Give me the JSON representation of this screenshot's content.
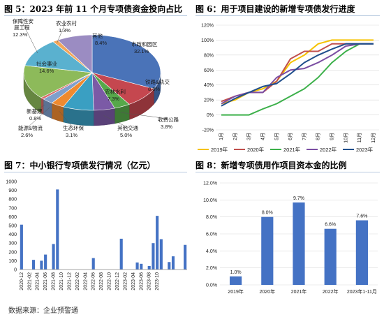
{
  "titles": {
    "fig5": "图 5：2023 年前 11 个月专项债资金投向占比",
    "fig6": "图 6：用于项目建设的新增专项债发行进度",
    "fig7": "图 7：中小银行专项债发行情况（亿元）",
    "fig8": "图 8：新增专项债用作项目资本金的比例"
  },
  "source": "数据来源：企业预警通",
  "chart_data": [
    {
      "id": "fig5",
      "type": "pie",
      "slices": [
        {
          "label": "市政和园区",
          "value": 32.1,
          "color": "#4a73b8"
        },
        {
          "label": "铁路&轨交",
          "value": 8.8,
          "color": "#c5474f"
        },
        {
          "label": "收费公路",
          "value": 3.8,
          "color": "#56a84a"
        },
        {
          "label": "其他交通",
          "value": 5.0,
          "color": "#7b5aa6"
        },
        {
          "label": "农林水利",
          "value": 7.3,
          "color": "#3a9fc2"
        },
        {
          "label": "生态环保",
          "value": 3.1,
          "color": "#ef8a2f"
        },
        {
          "label": "能源&物流",
          "value": 2.6,
          "color": "#7f9fcc"
        },
        {
          "label": "新基建",
          "value": 0.8,
          "color": "#d96b6b"
        },
        {
          "label": "社会事业",
          "value": 14.6,
          "color": "#8dba5a"
        },
        {
          "label": "保障性安居工程",
          "value": 12.3,
          "color": "#5ab1cf"
        },
        {
          "label": "农业农村",
          "value": 1.3,
          "color": "#f2a65a"
        },
        {
          "label": "其他",
          "value": 8.4,
          "color": "#9b8cc2"
        }
      ],
      "value_labels": {
        "市政和园区": "32.1%",
        "铁路&轨交": "8.8%",
        "收费公路": "3.8%",
        "其他交通": "5.0%",
        "农林水利": "7.3%",
        "生态环保": "3.1%",
        "能源&物流": "2.6%",
        "新基建": "0.8%",
        "社会事业": "14.6%",
        "保障性安居工程": "12.3%",
        "农业农村": "1.3%",
        "其他": "8.4%"
      }
    },
    {
      "id": "fig6",
      "type": "line",
      "x": [
        "1月",
        "2月",
        "3月",
        "4月",
        "5月",
        "6月",
        "7月",
        "8月",
        "9月",
        "10月",
        "11月",
        "12月"
      ],
      "y_ticks": [
        "-20%",
        "0%",
        "20%",
        "40%",
        "60%",
        "80%",
        "100%",
        "120%"
      ],
      "ylim": [
        -20,
        120
      ],
      "series": [
        {
          "name": "2019年",
          "color": "#f5c200",
          "values": [
            15,
            20,
            30,
            35,
            45,
            70,
            80,
            95,
            100,
            100,
            100,
            100
          ]
        },
        {
          "name": "2020年",
          "color": "#c0504d",
          "values": [
            18,
            25,
            30,
            30,
            45,
            75,
            85,
            85,
            95,
            95,
            95,
            95
          ]
        },
        {
          "name": "2021年",
          "color": "#3cb04a",
          "values": [
            0,
            0,
            0,
            8,
            15,
            25,
            35,
            50,
            70,
            85,
            95,
            95
          ]
        },
        {
          "name": "2022年",
          "color": "#7b4ea3",
          "values": [
            15,
            25,
            30,
            30,
            50,
            60,
            62,
            70,
            80,
            92,
            95,
            95
          ]
        },
        {
          "name": "2023年",
          "color": "#1f4e8c",
          "values": [
            12,
            22,
            30,
            38,
            42,
            55,
            70,
            80,
            88,
            95,
            95,
            95
          ]
        }
      ]
    },
    {
      "id": "fig7",
      "type": "bar",
      "color": "#4472c4",
      "y_ticks": [
        "0",
        "100",
        "200",
        "300",
        "400",
        "500",
        "600",
        "700",
        "800",
        "900",
        "1000"
      ],
      "ylim": [
        0,
        1000
      ],
      "x_tick_labels": [
        "2020-12",
        "2021-02",
        "2021-04",
        "2021-06",
        "2021-08",
        "2021-10",
        "2021-12",
        "2022-02",
        "2022-04",
        "2022-06",
        "2022-08",
        "2022-10",
        "2022-12",
        "2023-02",
        "2023-04",
        "2023-06",
        "2023-08",
        "2023-10"
      ],
      "values": [
        510,
        0,
        0,
        110,
        0,
        100,
        170,
        0,
        290,
        910,
        0,
        0,
        0,
        0,
        0,
        0,
        0,
        0,
        130,
        0,
        0,
        0,
        0,
        0,
        0,
        350,
        0,
        0,
        0,
        80,
        65,
        0,
        40,
        300,
        610,
        345,
        0,
        85,
        150,
        0,
        0,
        280
      ]
    },
    {
      "id": "fig8",
      "type": "bar",
      "color": "#4472c4",
      "categories": [
        "2019年",
        "2020年",
        "2021年",
        "2022年",
        "2023年1-11月"
      ],
      "values": [
        1.0,
        8.0,
        9.7,
        6.6,
        7.6
      ],
      "data_labels": [
        "1.0%",
        "8.0%",
        "9.7%",
        "6.6%",
        "7.6%"
      ],
      "y_ticks": [
        "0.0%",
        "2.0%",
        "4.0%",
        "6.0%",
        "8.0%",
        "10.0%",
        "12.0%"
      ],
      "ylim": [
        0,
        12
      ]
    }
  ]
}
